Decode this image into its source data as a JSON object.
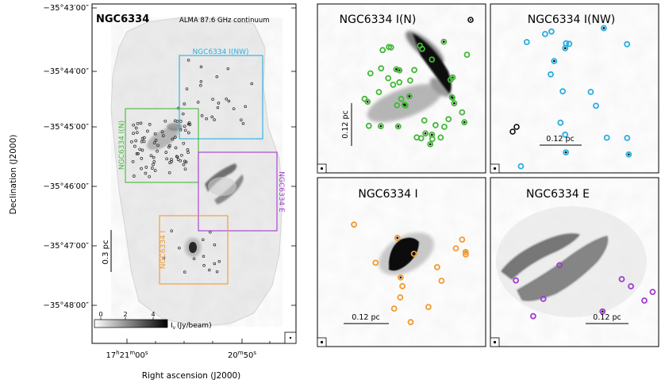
{
  "main": {
    "title": "NGC6334",
    "subtitle": "ALMA 87.6 GHz continuum",
    "ylabel": "Declination (J2000)",
    "xlabel": "Right ascension (J2000)",
    "dec_ticks": [
      "−35°43′00″",
      "−35°44′00″",
      "−35°45′00″",
      "−35°46′00″",
      "−35°47′00″",
      "−35°48′00″"
    ],
    "ra_tick_1_main": "17",
    "ra_tick_1_h": "h",
    "ra_tick_1_mid": "21",
    "ra_tick_1_m": "m",
    "ra_tick_1_end": "00",
    "ra_tick_1_s": "s",
    "ra_tick_2_main": "20",
    "ra_tick_2_m": "m",
    "ra_tick_2_end": "50",
    "ra_tick_2_s": "s",
    "scalebar_label": "0.3 pc",
    "colorbar_ticks": [
      "0",
      "2",
      "4"
    ],
    "colorbar_label": "I",
    "colorbar_sub": "ν",
    "colorbar_unit": "(Jy/beam)",
    "boxes": [
      {
        "label": "NGC6334 I(NW)",
        "color": "#29aee0"
      },
      {
        "label": "NGC6334 I(N)",
        "color": "#44b83a"
      },
      {
        "label": "NGC6334 E",
        "color": "#a23ad0"
      },
      {
        "label": "NGC6334 I",
        "color": "#f29a2e"
      }
    ]
  },
  "panels": [
    {
      "title": "NGC6334 I(N)",
      "scale": "0.12 pc",
      "color": "#44b83a"
    },
    {
      "title": "NGC6334 I(NW)",
      "scale": "0.12 pc",
      "color": "#29aee0"
    },
    {
      "title": "NGC6334 I",
      "scale": "0.12 pc",
      "color": "#f29a2e"
    },
    {
      "title": "NGC6334 E",
      "scale": "0.12 pc",
      "color": "#a23ad0"
    }
  ]
}
